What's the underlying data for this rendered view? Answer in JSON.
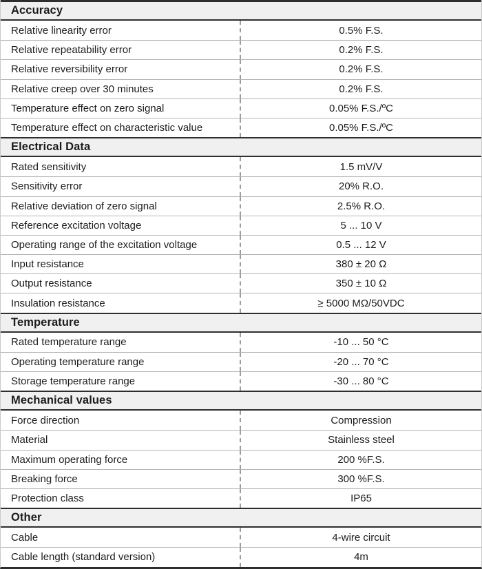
{
  "colors": {
    "dark_border": "#2e2e2e",
    "outer_border": "#c9c9c9",
    "header_bg": "#f0f0f0",
    "row_divider": "#b3b3b3",
    "dashed_divider": "#9c9c9c",
    "text": "#1c1c1c"
  },
  "table": {
    "sections": [
      {
        "title": "Accuracy",
        "rows": [
          {
            "label": "Relative linearity error",
            "value": "0.5% F.S."
          },
          {
            "label": "Relative repeatability error",
            "value": "0.2% F.S."
          },
          {
            "label": "Relative reversibility error",
            "value": "0.2% F.S."
          },
          {
            "label": "Relative creep over 30 minutes",
            "value": "0.2% F.S."
          },
          {
            "label": "Temperature effect on zero signal",
            "value": "0.05% F.S./ºC"
          },
          {
            "label": "Temperature effect on characteristic value",
            "value": "0.05% F.S./ºC"
          }
        ]
      },
      {
        "title": "Electrical Data",
        "rows": [
          {
            "label": "Rated sensitivity",
            "value": "1.5 mV/V"
          },
          {
            "label": "Sensitivity error",
            "value": "20% R.O."
          },
          {
            "label": "Relative deviation of zero signal",
            "value": "2.5% R.O."
          },
          {
            "label": "Reference excitation voltage",
            "value": "5 ... 10 V"
          },
          {
            "label": "Operating range of the excitation voltage",
            "value": "0.5 ... 12 V"
          },
          {
            "label": "Input resistance",
            "value": "380 ± 20 Ω"
          },
          {
            "label": "Output resistance",
            "value": "350 ± 10 Ω"
          },
          {
            "label": "Insulation resistance",
            "value": "≥ 5000 MΩ/50VDC"
          }
        ]
      },
      {
        "title": "Temperature",
        "rows": [
          {
            "label": "Rated temperature range",
            "value": "-10 ... 50 °C"
          },
          {
            "label": "Operating temperature range",
            "value": "-20 ... 70 °C"
          },
          {
            "label": "Storage temperature range",
            "value": "-30 ... 80 °C"
          }
        ]
      },
      {
        "title": "Mechanical values",
        "rows": [
          {
            "label": "Force direction",
            "value": "Compression"
          },
          {
            "label": "Material",
            "value": "Stainless steel"
          },
          {
            "label": "Maximum operating force",
            "value": "200 %F.S."
          },
          {
            "label": "Breaking force",
            "value": "300 %F.S."
          },
          {
            "label": "Protection class",
            "value": "IP65"
          }
        ]
      },
      {
        "title": "Other",
        "rows": [
          {
            "label": "Cable",
            "value": "4-wire circuit"
          },
          {
            "label": "Cable length (standard version)",
            "value": "4m"
          }
        ]
      }
    ]
  }
}
